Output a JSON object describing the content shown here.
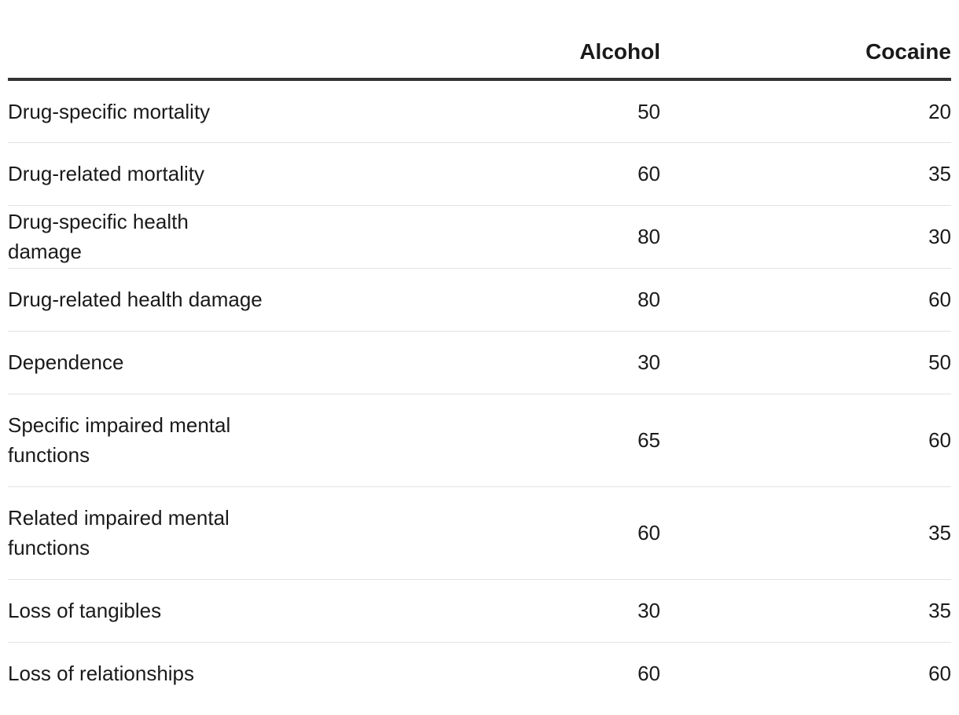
{
  "chart_data": {
    "type": "table",
    "columns": [
      "",
      "Alcohol",
      "Cocaine"
    ],
    "rows": [
      {
        "label": "Drug-specific mortality",
        "alcohol": "50",
        "cocaine": "20"
      },
      {
        "label": "Drug-related mortality",
        "alcohol": "60",
        "cocaine": "35"
      },
      {
        "label": "Drug-specific health damage",
        "alcohol": "80",
        "cocaine": "30"
      },
      {
        "label": "Drug-related health damage",
        "alcohol": "80",
        "cocaine": "60"
      },
      {
        "label": "Dependence",
        "alcohol": "30",
        "cocaine": "50"
      },
      {
        "label": "Specific impaired mental functions",
        "alcohol": "65",
        "cocaine": "60"
      },
      {
        "label": "Related impaired mental functions",
        "alcohol": "60",
        "cocaine": "35"
      },
      {
        "label": "Loss of tangibles",
        "alcohol": "30",
        "cocaine": "35"
      },
      {
        "label": "Loss of relationships",
        "alcohol": "60",
        "cocaine": "60"
      }
    ]
  }
}
